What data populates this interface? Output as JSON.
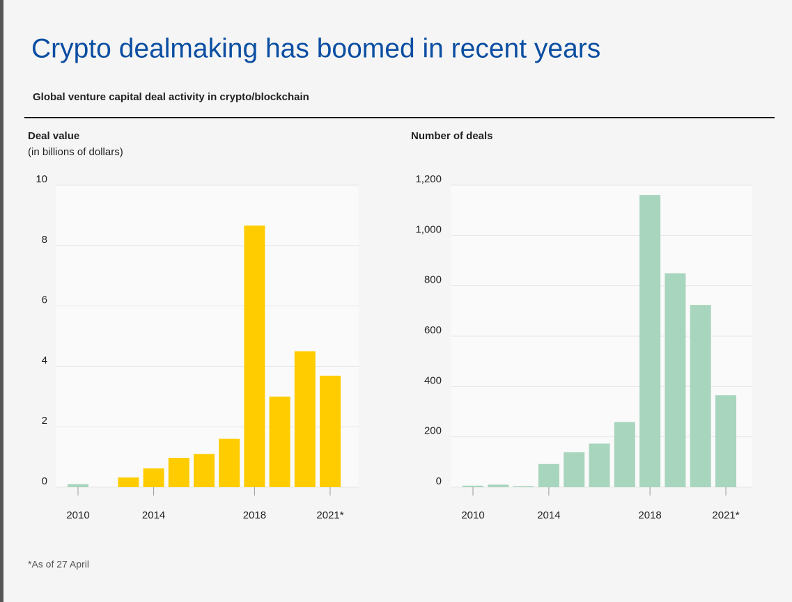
{
  "title": "Crypto dealmaking has boomed in recent years",
  "subtitle": "Global venture capital deal activity in crypto/blockchain",
  "footnote": "*As of 27 April",
  "chart_data": [
    {
      "type": "bar",
      "title": "Deal value",
      "subtitle": "(in billions of dollars)",
      "categories": [
        "2010",
        null,
        null,
        "2014",
        null,
        null,
        null,
        "2018",
        null,
        null,
        "2021*"
      ],
      "values": [
        0.1,
        null,
        0.32,
        0.62,
        0.97,
        1.1,
        1.6,
        8.66,
        3.0,
        4.5,
        3.69
      ],
      "colors": [
        "#a8d5bd",
        null,
        "#ffcc00",
        "#ffcc00",
        "#ffcc00",
        "#ffcc00",
        "#ffcc00",
        "#ffcc00",
        "#ffcc00",
        "#ffcc00",
        "#ffcc00"
      ],
      "ylim": [
        0,
        10
      ],
      "yticks": [
        0,
        2,
        4,
        6,
        8,
        10
      ],
      "grid": true
    },
    {
      "type": "bar",
      "title": "Number of deals",
      "categories": [
        "2010",
        null,
        null,
        "2014",
        null,
        null,
        null,
        "2018",
        null,
        null,
        "2021*"
      ],
      "values": [
        6,
        10,
        4,
        92,
        139,
        173,
        259,
        1161,
        850,
        724,
        365
      ],
      "colors": [
        "#a8d5bd",
        "#a8d5bd",
        "#a8d5bd",
        "#a8d5bd",
        "#a8d5bd",
        "#a8d5bd",
        "#a8d5bd",
        "#a8d5bd",
        "#a8d5bd",
        "#a8d5bd",
        "#a8d5bd"
      ],
      "ylim": [
        0,
        1200
      ],
      "yticks": [
        0,
        200,
        400,
        600,
        800,
        {
          "value": 1000,
          "label": "1,000"
        },
        {
          "value": 1200,
          "label": "1,200"
        }
      ],
      "grid": true
    }
  ]
}
